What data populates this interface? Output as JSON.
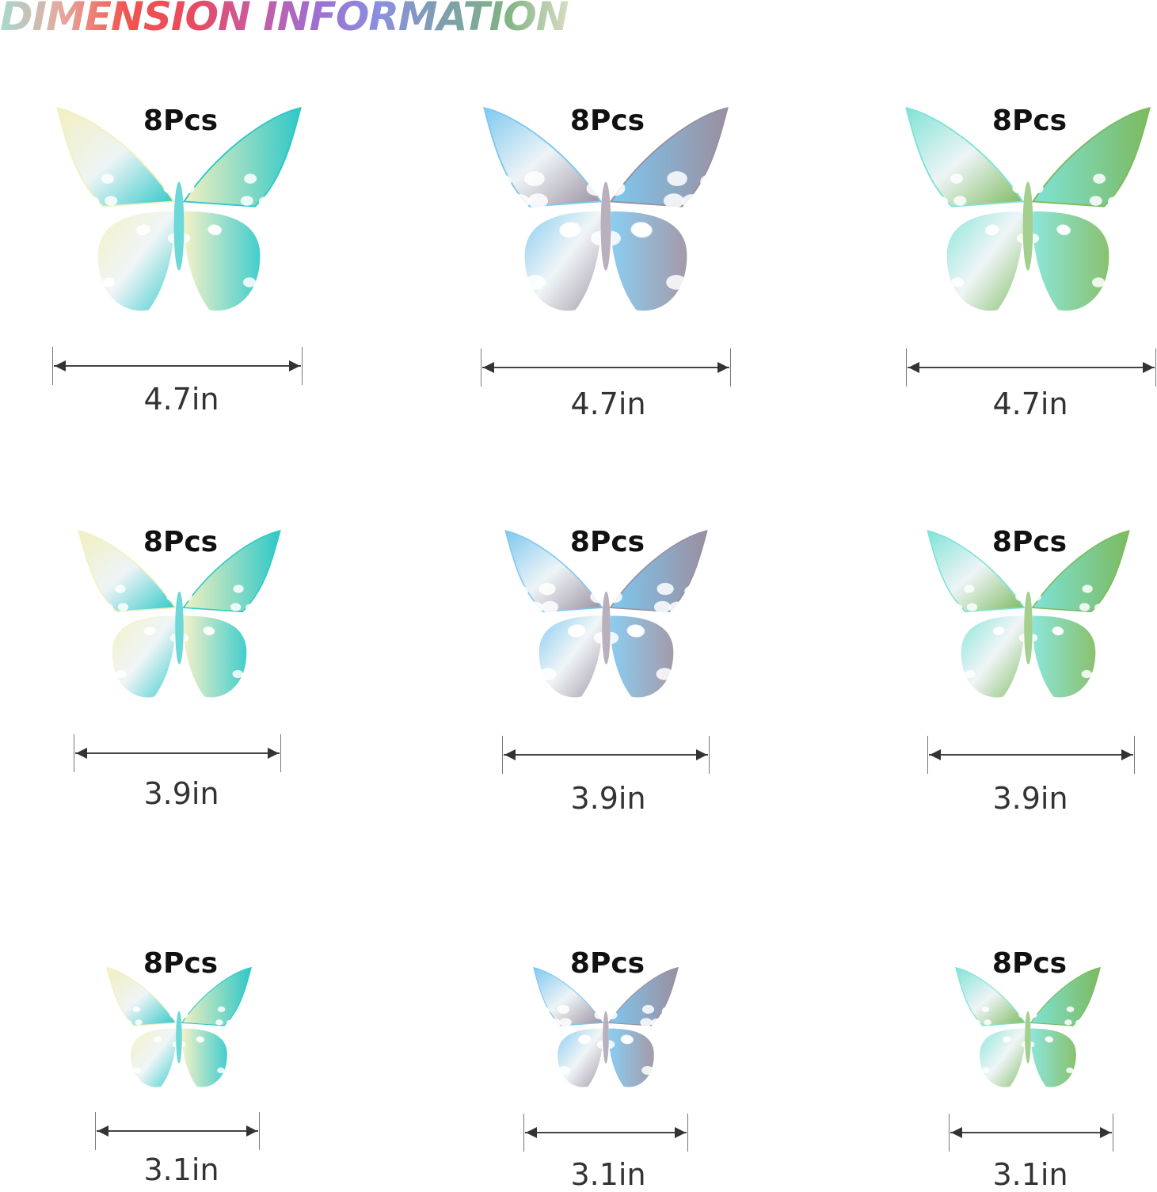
{
  "title": "DIMENSION INFORMATION",
  "items": [
    {
      "count": "8Pcs",
      "size": "4.7in",
      "style": "hollow-lace",
      "colors": [
        "#f2f0c0",
        "#2ec8c8"
      ]
    },
    {
      "count": "8Pcs",
      "size": "4.7in",
      "style": "dotted-swallowtail",
      "colors": [
        "#7ec8f0",
        "#9a8fa0"
      ]
    },
    {
      "count": "8Pcs",
      "size": "4.7in",
      "style": "monarch-lace",
      "colors": [
        "#7fe3d6",
        "#7cba5f"
      ]
    },
    {
      "count": "8Pcs",
      "size": "3.9in",
      "style": "hollow-lace",
      "colors": [
        "#f2f0c0",
        "#2ec8c8"
      ]
    },
    {
      "count": "8Pcs",
      "size": "3.9in",
      "style": "dotted-swallowtail",
      "colors": [
        "#7ec8f0",
        "#9a8fa0"
      ]
    },
    {
      "count": "8Pcs",
      "size": "3.9in",
      "style": "monarch-lace",
      "colors": [
        "#7fe3d6",
        "#7cba5f"
      ]
    },
    {
      "count": "8Pcs",
      "size": "3.1in",
      "style": "hollow-lace",
      "colors": [
        "#f2f0c0",
        "#2ec8c8"
      ]
    },
    {
      "count": "8Pcs",
      "size": "3.1in",
      "style": "dotted-swallowtail",
      "colors": [
        "#7ec8f0",
        "#9a8fa0"
      ]
    },
    {
      "count": "8Pcs",
      "size": "3.1in",
      "style": "monarch-lace",
      "colors": [
        "#7fe3d6",
        "#7cba5f"
      ]
    }
  ]
}
